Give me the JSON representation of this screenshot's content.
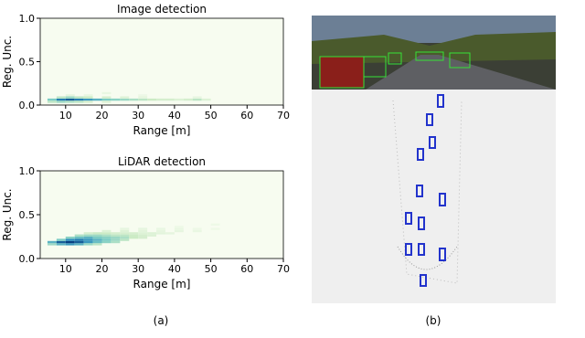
{
  "chart_data": [
    {
      "type": "heatmap",
      "title": "Image detection",
      "xlabel": "Range [m]",
      "ylabel": "Reg. Unc.",
      "xlim": [
        3,
        70
      ],
      "ylim": [
        0,
        1
      ],
      "xticks": [
        10,
        20,
        30,
        40,
        50,
        60,
        70
      ],
      "yticks": [
        {
          "value": 0,
          "label": "0.0"
        },
        {
          "value": 0.5,
          "label": "0.5"
        },
        {
          "value": 1,
          "label": "1.0"
        }
      ],
      "bin_size": [
        2.5,
        0.025
      ],
      "colormap": [
        "#f7fcf0",
        "#ccebc5",
        "#7bccc4",
        "#2b8cbe",
        "#084081"
      ],
      "cell_x": [
        5,
        7.5,
        10,
        12.5,
        15,
        17.5,
        20,
        22.5,
        25,
        27.5,
        30,
        32.5,
        35,
        37.5,
        40,
        42.5,
        45,
        47.5,
        5,
        7.5,
        10,
        12.5,
        15,
        20,
        7.5,
        10,
        12.5,
        15,
        20,
        25,
        30,
        10,
        15,
        20,
        30,
        45
      ],
      "cell_y": [
        0.05,
        0.05,
        0.05,
        0.05,
        0.05,
        0.05,
        0.05,
        0.05,
        0.05,
        0.05,
        0.05,
        0.05,
        0.05,
        0.05,
        0.05,
        0.05,
        0.05,
        0.05,
        0.025,
        0.025,
        0.025,
        0.025,
        0.025,
        0.025,
        0.075,
        0.075,
        0.075,
        0.075,
        0.075,
        0.075,
        0.075,
        0.1,
        0.1,
        0.125,
        0.1,
        0.075
      ],
      "cell_v": [
        0.5,
        0.8,
        0.9,
        0.8,
        0.7,
        0.6,
        0.5,
        0.45,
        0.4,
        0.35,
        0.3,
        0.25,
        0.2,
        0.2,
        0.15,
        0.2,
        0.3,
        0.15,
        0.3,
        0.4,
        0.35,
        0.3,
        0.2,
        0.15,
        0.3,
        0.4,
        0.3,
        0.25,
        0.2,
        0.15,
        0.1,
        0.1,
        0.08,
        0.08,
        0.06,
        0.1
      ]
    },
    {
      "type": "heatmap",
      "title": "LiDAR detection",
      "xlabel": "Range [m]",
      "ylabel": "Reg. Unc.",
      "xlim": [
        3,
        70
      ],
      "ylim": [
        0,
        1
      ],
      "xticks": [
        10,
        20,
        30,
        40,
        50,
        60,
        70
      ],
      "yticks": [
        {
          "value": 0,
          "label": "0.0"
        },
        {
          "value": 0.5,
          "label": "0.5"
        },
        {
          "value": 1,
          "label": "1.0"
        }
      ],
      "bin_size": [
        2.5,
        0.025
      ],
      "colormap": [
        "#f7fcf0",
        "#ccebc5",
        "#7bccc4",
        "#2b8cbe",
        "#084081"
      ],
      "cell_x": [
        5,
        7.5,
        10,
        12.5,
        15,
        17.5,
        5,
        7.5,
        10,
        12.5,
        15,
        17.5,
        20,
        22.5,
        7.5,
        10,
        12.5,
        15,
        17.5,
        20,
        22.5,
        25,
        10,
        12.5,
        15,
        17.5,
        20,
        22.5,
        25,
        27.5,
        30,
        12.5,
        15,
        17.5,
        20,
        22.5,
        25,
        27.5,
        30,
        32.5,
        15,
        17.5,
        20,
        22.5,
        25,
        27.5,
        30,
        32.5,
        35,
        37.5,
        20,
        25,
        30,
        35,
        40,
        45,
        25,
        30,
        35,
        40,
        45,
        50,
        40,
        50
      ],
      "cell_y": [
        0.15,
        0.15,
        0.15,
        0.15,
        0.15,
        0.15,
        0.175,
        0.175,
        0.175,
        0.175,
        0.175,
        0.175,
        0.175,
        0.175,
        0.2,
        0.2,
        0.2,
        0.2,
        0.2,
        0.2,
        0.2,
        0.2,
        0.225,
        0.225,
        0.225,
        0.225,
        0.225,
        0.225,
        0.225,
        0.225,
        0.225,
        0.25,
        0.25,
        0.25,
        0.25,
        0.25,
        0.25,
        0.25,
        0.25,
        0.25,
        0.275,
        0.275,
        0.275,
        0.275,
        0.275,
        0.275,
        0.275,
        0.275,
        0.275,
        0.275,
        0.3,
        0.3,
        0.3,
        0.3,
        0.3,
        0.3,
        0.325,
        0.325,
        0.325,
        0.325,
        0.325,
        0.325,
        0.35,
        0.375
      ],
      "cell_v": [
        0.4,
        0.6,
        0.7,
        0.6,
        0.4,
        0.3,
        0.6,
        0.9,
        1,
        0.9,
        0.7,
        0.55,
        0.45,
        0.35,
        0.5,
        0.75,
        0.8,
        0.7,
        0.6,
        0.5,
        0.4,
        0.3,
        0.45,
        0.55,
        0.6,
        0.5,
        0.45,
        0.4,
        0.35,
        0.25,
        0.2,
        0.35,
        0.4,
        0.4,
        0.35,
        0.3,
        0.3,
        0.25,
        0.2,
        0.15,
        0.2,
        0.25,
        0.25,
        0.2,
        0.2,
        0.2,
        0.15,
        0.15,
        0.12,
        0.1,
        0.15,
        0.15,
        0.12,
        0.1,
        0.1,
        0.08,
        0.1,
        0.1,
        0.08,
        0.08,
        0.06,
        0.05,
        0.05,
        0.05
      ]
    }
  ],
  "captions": [
    "(a)",
    "(b)"
  ]
}
